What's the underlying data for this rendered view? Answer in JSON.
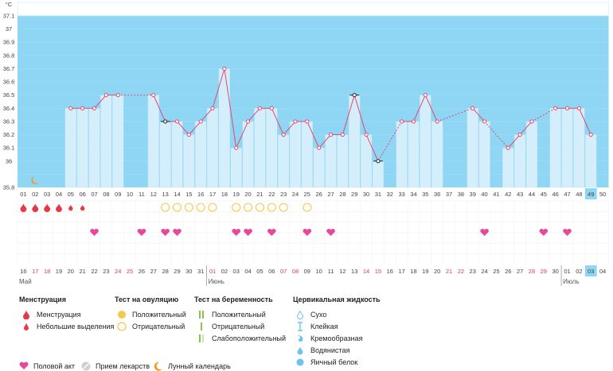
{
  "chart_data": {
    "type": "line",
    "unit_label": "°C",
    "ylim": [
      35.8,
      37.1
    ],
    "y_ticks": [
      35.8,
      36,
      36.1,
      36.2,
      36.3,
      36.4,
      36.5,
      36.6,
      36.7,
      36.8,
      36.9,
      37,
      37.1
    ],
    "cycle_days": [
      "01",
      "02",
      "03",
      "04",
      "05",
      "06",
      "07",
      "08",
      "09",
      "10",
      "11",
      "12",
      "13",
      "14",
      "15",
      "16",
      "17",
      "18",
      "19",
      "20",
      "21",
      "22",
      "23",
      "24",
      "25",
      "26",
      "27",
      "28",
      "29",
      "30",
      "31",
      "32",
      "33",
      "34",
      "35",
      "36",
      "37",
      "38",
      "39",
      "40",
      "41",
      "42",
      "43",
      "44",
      "45",
      "46",
      "47",
      "48",
      "49",
      "50"
    ],
    "highlight_day_index": 48,
    "temperatures": [
      null,
      null,
      null,
      null,
      36.4,
      36.4,
      36.4,
      36.5,
      36.5,
      null,
      null,
      36.5,
      36.3,
      36.3,
      36.2,
      36.3,
      36.4,
      36.7,
      36.1,
      36.3,
      36.4,
      36.4,
      36.2,
      36.3,
      36.3,
      36.1,
      36.2,
      36.2,
      36.5,
      36.2,
      36.0,
      null,
      36.3,
      36.3,
      36.5,
      36.3,
      null,
      null,
      36.4,
      36.3,
      null,
      36.1,
      36.2,
      36.3,
      null,
      36.4,
      36.4,
      36.4,
      36.2,
      null
    ],
    "dark_marker_days": [
      13,
      29,
      31
    ],
    "moon_day_index": 1,
    "menstruation_days": [
      1,
      2,
      3,
      4
    ],
    "light_spotting_days": [
      5,
      6
    ],
    "ovulation_negative_days": [
      13,
      14,
      15,
      16,
      17,
      19,
      20,
      21,
      22,
      23,
      25
    ],
    "intercourse_days": [
      7,
      11,
      13,
      14,
      19,
      20,
      22,
      25,
      27,
      40,
      45,
      47
    ],
    "dates": [
      "16",
      "17",
      "18",
      "19",
      "20",
      "21",
      "22",
      "23",
      "24",
      "25",
      "26",
      "27",
      "28",
      "29",
      "30",
      "31",
      "01",
      "02",
      "03",
      "04",
      "05",
      "06",
      "07",
      "08",
      "09",
      "10",
      "11",
      "12",
      "13",
      "14",
      "15",
      "16",
      "17",
      "18",
      "19",
      "20",
      "21",
      "22",
      "23",
      "24",
      "25",
      "26",
      "27",
      "28",
      "29",
      "30",
      "01",
      "02",
      "03",
      "04"
    ],
    "red_date_indices": [
      1,
      2,
      8,
      9,
      16,
      22,
      23,
      29,
      30,
      36,
      37,
      43,
      44
    ],
    "month_labels": [
      {
        "index": 0,
        "text": "Май"
      },
      {
        "index": 16,
        "text": "Июнь"
      },
      {
        "index": 46,
        "text": "Июль"
      }
    ]
  },
  "legend": {
    "menstruation": {
      "title": "Менструация",
      "items": [
        "Менструация",
        "Небольшие выделения"
      ]
    },
    "ovulation_test": {
      "title": "Тест на овуляцию",
      "items": [
        "Положительный",
        "Отрицательный"
      ]
    },
    "pregnancy_test": {
      "title": "Тест на беременность",
      "items": [
        "Положительный",
        "Отрицательный",
        "Слабоположительный"
      ]
    },
    "cervical_fluid": {
      "title": "Цервикальная жидкость",
      "items": [
        "Сухо",
        "Клейкая",
        "Кремообразная",
        "Водянистая",
        "Яичный белок"
      ]
    },
    "bottom": {
      "intercourse": "Половой акт",
      "medication": "Прием лекарств",
      "lunar": "Лунный календарь"
    }
  },
  "colors": {
    "chart_bg": "#8fd6f4",
    "bar": "#d4effb",
    "line": "#e8456f",
    "drop": "#e63946",
    "heart": "#e8489a",
    "ovulation": "#f2c94c",
    "preg": "#8bc34a",
    "fluid": "#6cc3ec",
    "highlight": "#8fd6f4"
  }
}
